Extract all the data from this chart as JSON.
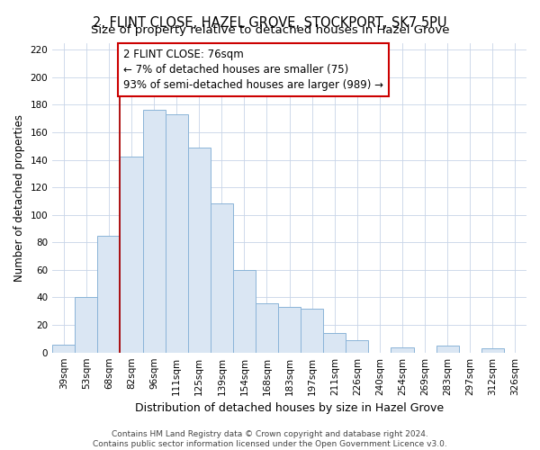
{
  "title": "2, FLINT CLOSE, HAZEL GROVE, STOCKPORT, SK7 5PU",
  "subtitle": "Size of property relative to detached houses in Hazel Grove",
  "xlabel": "Distribution of detached houses by size in Hazel Grove",
  "ylabel": "Number of detached properties",
  "bar_labels": [
    "39sqm",
    "53sqm",
    "68sqm",
    "82sqm",
    "96sqm",
    "111sqm",
    "125sqm",
    "139sqm",
    "154sqm",
    "168sqm",
    "183sqm",
    "197sqm",
    "211sqm",
    "226sqm",
    "240sqm",
    "254sqm",
    "269sqm",
    "283sqm",
    "297sqm",
    "312sqm",
    "326sqm"
  ],
  "bar_heights": [
    6,
    40,
    85,
    142,
    176,
    173,
    149,
    108,
    60,
    36,
    33,
    32,
    14,
    9,
    0,
    4,
    0,
    5,
    0,
    3,
    0
  ],
  "bar_color": "#dae6f3",
  "bar_edge_color": "#8ab4d8",
  "ref_line_color": "#aa0000",
  "annotation_line1": "2 FLINT CLOSE: 76sqm",
  "annotation_line2": "← 7% of detached houses are smaller (75)",
  "annotation_line3": "93% of semi-detached houses are larger (989) →",
  "annotation_box_color": "#ffffff",
  "annotation_box_edge": "#cc0000",
  "ylim": [
    0,
    225
  ],
  "yticks": [
    0,
    20,
    40,
    60,
    80,
    100,
    120,
    140,
    160,
    180,
    200,
    220
  ],
  "footer": "Contains HM Land Registry data © Crown copyright and database right 2024.\nContains public sector information licensed under the Open Government Licence v3.0.",
  "title_fontsize": 10.5,
  "subtitle_fontsize": 9.5,
  "xlabel_fontsize": 9,
  "ylabel_fontsize": 8.5,
  "tick_fontsize": 7.5,
  "annotation_fontsize": 8.5,
  "footer_fontsize": 6.5
}
